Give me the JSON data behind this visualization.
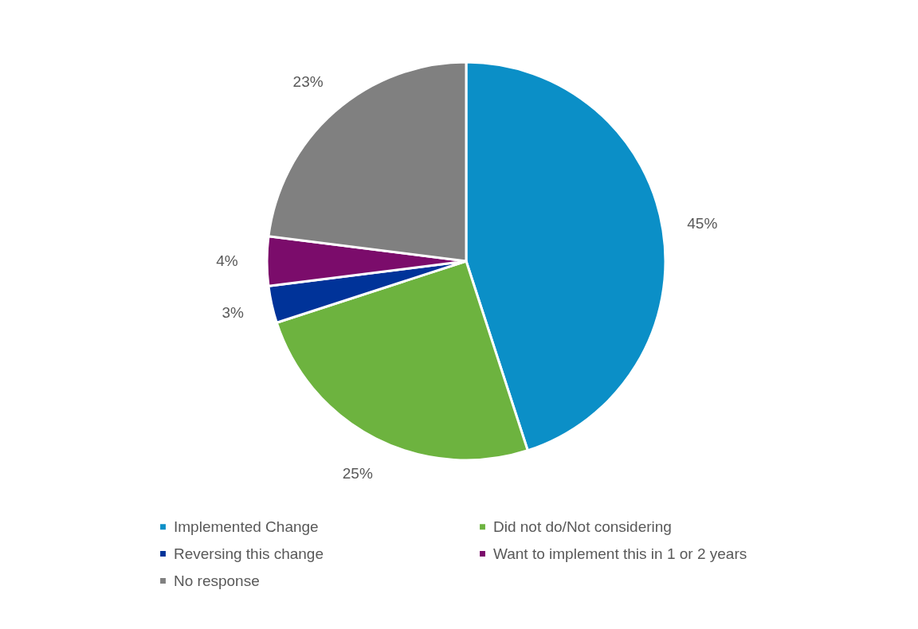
{
  "chart_data": {
    "type": "pie",
    "categories": [
      "Implemented Change",
      "Did not do/Not considering",
      "Reversing this change",
      "Want to implement this in 1 or 2 years",
      "No response"
    ],
    "values": [
      45,
      25,
      3,
      4,
      23
    ],
    "value_labels": [
      "45%",
      "25%",
      "3%",
      "4%",
      "23%"
    ],
    "colors": [
      "#0b8fc7",
      "#6db33f",
      "#003399",
      "#7b0c6b",
      "#808080"
    ],
    "legend": "bottom"
  }
}
